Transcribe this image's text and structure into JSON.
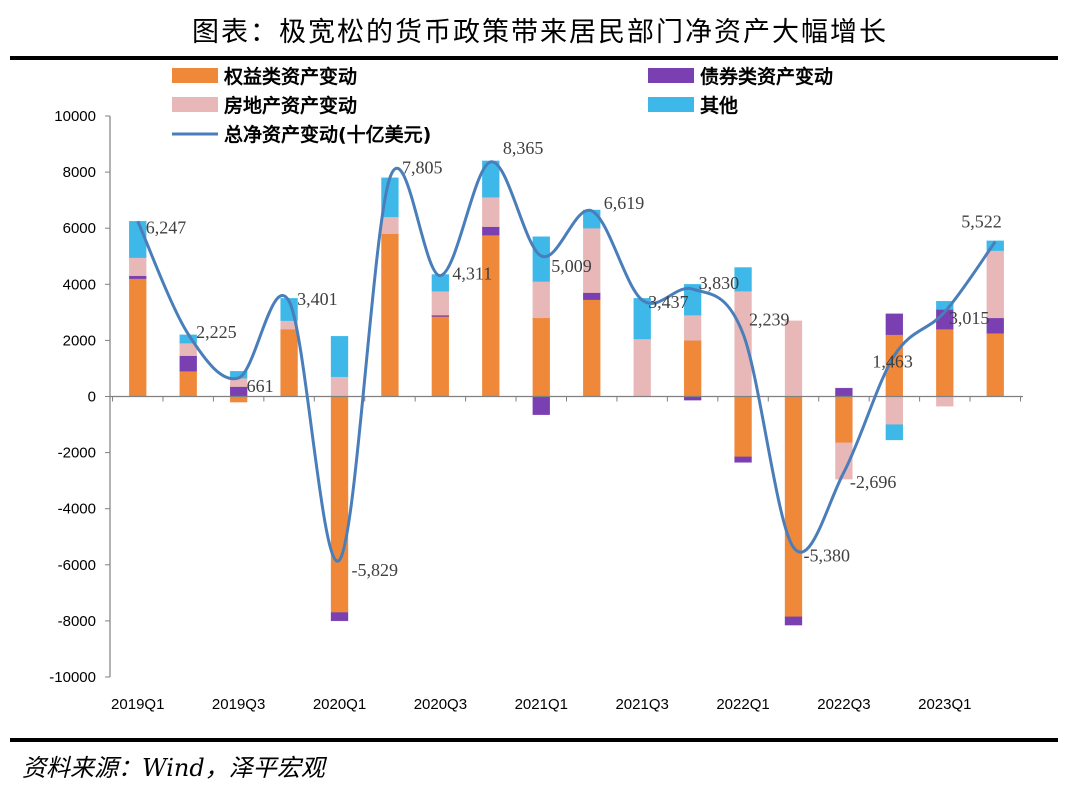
{
  "title": "图表：极宽松的货币政策带来居民部门净资产大幅增长",
  "source": "资料来源：Wind，泽平宏观",
  "colors": {
    "equity": "#F0883A",
    "bond": "#7A3FB0",
    "real_estate": "#E8B8B8",
    "other": "#3DB8E8",
    "total": "#4A7EBB"
  },
  "chart_data": {
    "type": "bar",
    "stacked": true,
    "categories": [
      "2019Q1",
      "2019Q2",
      "2019Q3",
      "2019Q4",
      "2020Q1",
      "2020Q2",
      "2020Q3",
      "2020Q4",
      "2021Q1",
      "2021Q2",
      "2021Q3",
      "2021Q4",
      "2022Q1",
      "2022Q2",
      "2022Q3",
      "2022Q4",
      "2023Q1",
      "2023Q2"
    ],
    "tick_labels": [
      "2019Q1",
      "2019Q3",
      "2020Q1",
      "2020Q3",
      "2021Q1",
      "2021Q3",
      "2022Q1",
      "2022Q3",
      "2023Q1"
    ],
    "ylim": [
      -10000,
      10000
    ],
    "yticks": [
      "10000",
      "8000",
      "6000",
      "4000",
      "2000",
      "0",
      "-2000",
      "-4000",
      "-6000",
      "-8000",
      "-10000"
    ],
    "series": [
      {
        "name": "权益类资产变动",
        "key": "equity",
        "values": [
          4200,
          900,
          -200,
          2400,
          -7700,
          5800,
          2850,
          5750,
          2800,
          3450,
          0,
          2000,
          -2150,
          -7850,
          -1650,
          2200,
          2400,
          2250
        ]
      },
      {
        "name": "债券类资产变动",
        "key": "bond",
        "values": [
          100,
          550,
          350,
          0,
          -300,
          0,
          50,
          300,
          -650,
          250,
          0,
          -130,
          -200,
          -300,
          300,
          750,
          700,
          550
        ]
      },
      {
        "name": "房地产资产变动",
        "key": "real_estate",
        "values": [
          650,
          450,
          300,
          300,
          700,
          600,
          850,
          1050,
          1300,
          2300,
          2050,
          900,
          3750,
          2700,
          -1300,
          -1000,
          -350,
          2400
        ]
      },
      {
        "name": "其他",
        "key": "other",
        "values": [
          1300,
          300,
          250,
          800,
          1450,
          1400,
          600,
          1300,
          1600,
          650,
          1450,
          1100,
          850,
          0,
          0,
          -550,
          300,
          350
        ]
      }
    ],
    "total_series": {
      "name": "总净资产变动(十亿美元)",
      "values": [
        6247,
        2225,
        661,
        3401,
        -5829,
        7805,
        4311,
        8365,
        5009,
        6619,
        3437,
        3830,
        2239,
        -5380,
        -2696,
        1463,
        3015,
        5522
      ],
      "labels": [
        "6,247",
        "2,225",
        "661",
        "3,401",
        "-5,829",
        "7,805",
        "4,311",
        "8,365",
        "5,009",
        "6,619",
        "3,437",
        "3,830",
        "2,239",
        "-5,380",
        "-2,696",
        "1,463",
        "3,015",
        "5,522"
      ]
    },
    "legend": {
      "placement": "top",
      "items": [
        "权益类资产变动",
        "债券类资产变动",
        "房地产资产变动",
        "其他",
        "总净资产变动(十亿美元)"
      ]
    }
  }
}
